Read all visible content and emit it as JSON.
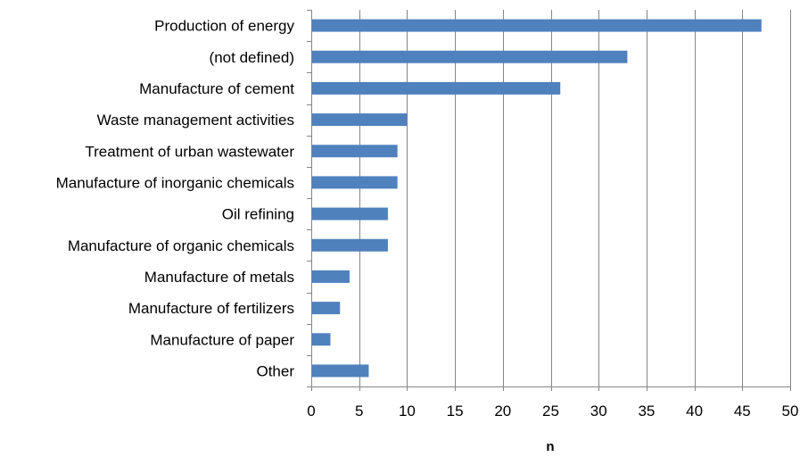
{
  "chart_data": {
    "type": "bar",
    "orientation": "horizontal",
    "categories": [
      "Production of energy",
      "(not defined)",
      "Manufacture of cement",
      "Waste management activities",
      "Treatment of urban wastewater",
      "Manufacture of inorganic chemicals",
      "Oil refining",
      "Manufacture of organic chemicals",
      "Manufacture of metals",
      "Manufacture of fertilizers",
      "Manufacture of paper",
      "Other"
    ],
    "values": [
      47,
      33,
      26,
      10,
      9,
      9,
      8,
      8,
      4,
      3,
      2,
      6
    ],
    "xlabel": "n",
    "ylabel": "",
    "xlim": [
      0,
      50
    ],
    "xticks": [
      "0",
      "5",
      "10",
      "15",
      "20",
      "25",
      "30",
      "35",
      "40",
      "45",
      "50"
    ],
    "grid": "vertical",
    "legend": "none",
    "bar_color": "#4F81BD"
  }
}
